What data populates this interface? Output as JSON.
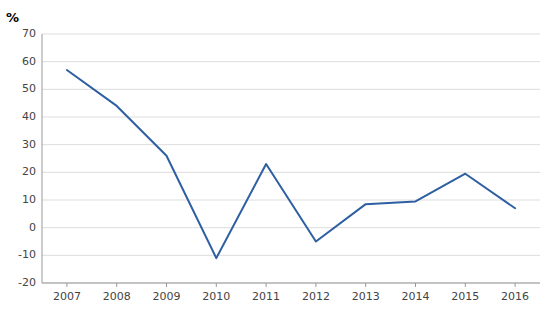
{
  "chart_data": {
    "type": "line",
    "ylabel": "%",
    "x": [
      2007,
      2008,
      2009,
      2010,
      2011,
      2012,
      2013,
      2014,
      2015,
      2016
    ],
    "values": [
      57,
      44,
      26,
      -11,
      23,
      -5,
      8.5,
      9.5,
      19.5,
      7
    ],
    "color": "#2E5FA3",
    "xlim": [
      2006.5,
      2016.5
    ],
    "xticks": [
      2007,
      2008,
      2009,
      2010,
      2011,
      2012,
      2013,
      2014,
      2015,
      2016
    ],
    "ylim": [
      -20,
      70
    ],
    "yticks": [
      -20,
      -10,
      0,
      10,
      20,
      30,
      40,
      50,
      60,
      70
    ],
    "grid": true
  }
}
